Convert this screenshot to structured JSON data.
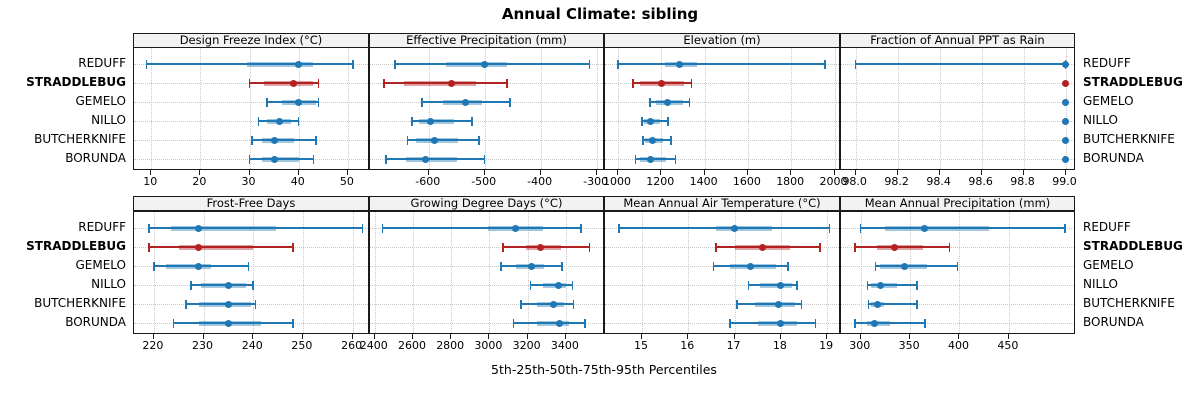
{
  "title": "Annual Climate: sibling",
  "chart_data": {
    "type": "trellis-dotplot",
    "title": "Annual Climate: sibling",
    "xlabel": "5th-25th-50th-75th-95th Percentiles",
    "percentiles": [
      5,
      25,
      50,
      75,
      95
    ],
    "layout": {
      "grid": "2x4",
      "grid_on": true,
      "row_labels_left": true,
      "row_labels_right": true
    },
    "locations": [
      "REDUFF",
      "STRADDLEBUG",
      "GEMELO",
      "NILLO",
      "BUTCHERKNIFE",
      "BORUNDA"
    ],
    "highlight_location": "STRADDLEBUG",
    "colors": {
      "series": "#1f77b4",
      "highlight": "#b22222",
      "grid": "#c9c9c9",
      "strip_bg": "#f2f2f2",
      "border": "#1a1a1a"
    },
    "panels": [
      {
        "title": "Design Freeze Index (°C)",
        "row": 0,
        "col": 0,
        "xlim": [
          6.5,
          54.5
        ],
        "ticks": [
          10,
          20,
          30,
          40,
          50
        ],
        "tick_labels": [
          "10",
          "20",
          "30",
          "40",
          "50"
        ],
        "values": [
          [
            9,
            29.5,
            40,
            43,
            51
          ],
          [
            30,
            33,
            39,
            43,
            44
          ],
          [
            33.5,
            36.5,
            40,
            43.5,
            44
          ],
          [
            31.8,
            33.5,
            36,
            38.5,
            40
          ],
          [
            30.5,
            32.5,
            35,
            39,
            43.5
          ],
          [
            30,
            32.5,
            35,
            40,
            43
          ]
        ]
      },
      {
        "title": "Effective Precipitation (mm)",
        "row": 0,
        "col": 1,
        "xlim": [
          -705,
          -285
        ],
        "ticks": [
          -600,
          -500,
          -400,
          -300
        ],
        "tick_labels": [
          "-600",
          "-500",
          "-400",
          "-300"
        ],
        "values": [
          [
            -660,
            -570,
            -500,
            -460,
            -313
          ],
          [
            -680,
            -645,
            -560,
            -515,
            -460
          ],
          [
            -612,
            -575,
            -535,
            -505,
            -455
          ],
          [
            -630,
            -618,
            -597,
            -555,
            -523
          ],
          [
            -638,
            -623,
            -590,
            -547,
            -510
          ],
          [
            -676,
            -640,
            -605,
            -550,
            -500
          ]
        ]
      },
      {
        "title": "Elevation (m)",
        "row": 0,
        "col": 2,
        "xlim": [
          940,
          2030
        ],
        "ticks": [
          1000,
          1200,
          1400,
          1600,
          1800,
          2000
        ],
        "tick_labels": [
          "1000",
          "1200",
          "1400",
          "1600",
          "1800",
          "2000"
        ],
        "values": [
          [
            1000,
            1215,
            1285,
            1365,
            1955
          ],
          [
            1070,
            1100,
            1200,
            1305,
            1340
          ],
          [
            1148,
            1175,
            1227,
            1300,
            1330
          ],
          [
            1110,
            1120,
            1150,
            1195,
            1230
          ],
          [
            1115,
            1125,
            1160,
            1210,
            1245
          ],
          [
            1080,
            1100,
            1150,
            1220,
            1265
          ]
        ]
      },
      {
        "title": "Fraction of Annual PPT as Rain",
        "row": 0,
        "col": 3,
        "xlim": [
          97.93,
          99.05
        ],
        "ticks": [
          98.0,
          98.2,
          98.4,
          98.6,
          98.8,
          99.0
        ],
        "tick_labels": [
          "98.0",
          "98.2",
          "98.4",
          "98.6",
          "98.8",
          "99.0"
        ],
        "values": [
          [
            98.0,
            99.0,
            99.0,
            99.0,
            99.0
          ],
          [
            99.0,
            99.0,
            99.0,
            99.0,
            99.0
          ],
          [
            99.0,
            99.0,
            99.0,
            99.0,
            99.0
          ],
          [
            99.0,
            99.0,
            99.0,
            99.0,
            99.0
          ],
          [
            99.0,
            99.0,
            99.0,
            99.0,
            99.0
          ],
          [
            99.0,
            99.0,
            99.0,
            99.0,
            99.0
          ]
        ]
      },
      {
        "title": "Frost-Free Days",
        "row": 1,
        "col": 0,
        "xlim": [
          216,
          263.5
        ],
        "ticks": [
          220,
          230,
          240,
          250,
          260
        ],
        "tick_labels": [
          "220",
          "230",
          "240",
          "250",
          "260"
        ],
        "values": [
          [
            219,
            223.5,
            229,
            244.5,
            262
          ],
          [
            219,
            225,
            229,
            240,
            248
          ],
          [
            220,
            222.5,
            229,
            231.5,
            239
          ],
          [
            227.5,
            229.5,
            235,
            238.5,
            240
          ],
          [
            226.5,
            229,
            235,
            239.5,
            240.5
          ],
          [
            224,
            229,
            235,
            241.5,
            248
          ]
        ]
      },
      {
        "title": "Growing Degree Days (°C)",
        "row": 1,
        "col": 1,
        "xlim": [
          2375,
          3605
        ],
        "ticks": [
          2400,
          2600,
          2800,
          3000,
          3200,
          3400
        ],
        "tick_labels": [
          "2400",
          "2600",
          "2800",
          "3000",
          "3200",
          "3400"
        ],
        "values": [
          [
            2440,
            2990,
            3135,
            3280,
            3480
          ],
          [
            3070,
            3190,
            3270,
            3375,
            3525
          ],
          [
            3060,
            3140,
            3220,
            3285,
            3380
          ],
          [
            3215,
            3280,
            3360,
            3400,
            3435
          ],
          [
            3165,
            3250,
            3335,
            3390,
            3440
          ],
          [
            3125,
            3250,
            3365,
            3415,
            3500
          ]
        ]
      },
      {
        "title": "Mean Annual Air Temperature (°C)",
        "row": 1,
        "col": 2,
        "xlim": [
          14.2,
          19.3
        ],
        "ticks": [
          15,
          16,
          17,
          18,
          19
        ],
        "tick_labels": [
          "15",
          "16",
          "17",
          "18",
          "19"
        ],
        "values": [
          [
            14.5,
            16.6,
            17.0,
            17.8,
            19.05
          ],
          [
            16.6,
            17.0,
            17.6,
            18.2,
            18.85
          ],
          [
            16.55,
            16.9,
            17.35,
            17.9,
            18.15
          ],
          [
            17.3,
            17.55,
            18.0,
            18.25,
            18.35
          ],
          [
            17.05,
            17.45,
            17.95,
            18.3,
            18.45
          ],
          [
            16.9,
            17.5,
            18.0,
            18.35,
            18.75
          ]
        ]
      },
      {
        "title": "Mean Annual Precipitation (mm)",
        "row": 1,
        "col": 3,
        "xlim": [
          280,
          518
        ],
        "ticks": [
          300,
          350,
          400,
          450
        ],
        "tick_labels": [
          "300",
          "350",
          "400",
          "450"
        ],
        "values": [
          [
            300,
            325,
            365,
            430,
            507
          ],
          [
            294,
            316,
            334,
            363,
            390
          ],
          [
            315,
            320,
            344,
            367,
            398
          ],
          [
            307,
            310,
            320,
            337,
            357
          ],
          [
            308,
            310,
            317,
            324,
            357
          ],
          [
            294,
            306,
            314,
            330,
            365
          ]
        ]
      }
    ]
  }
}
